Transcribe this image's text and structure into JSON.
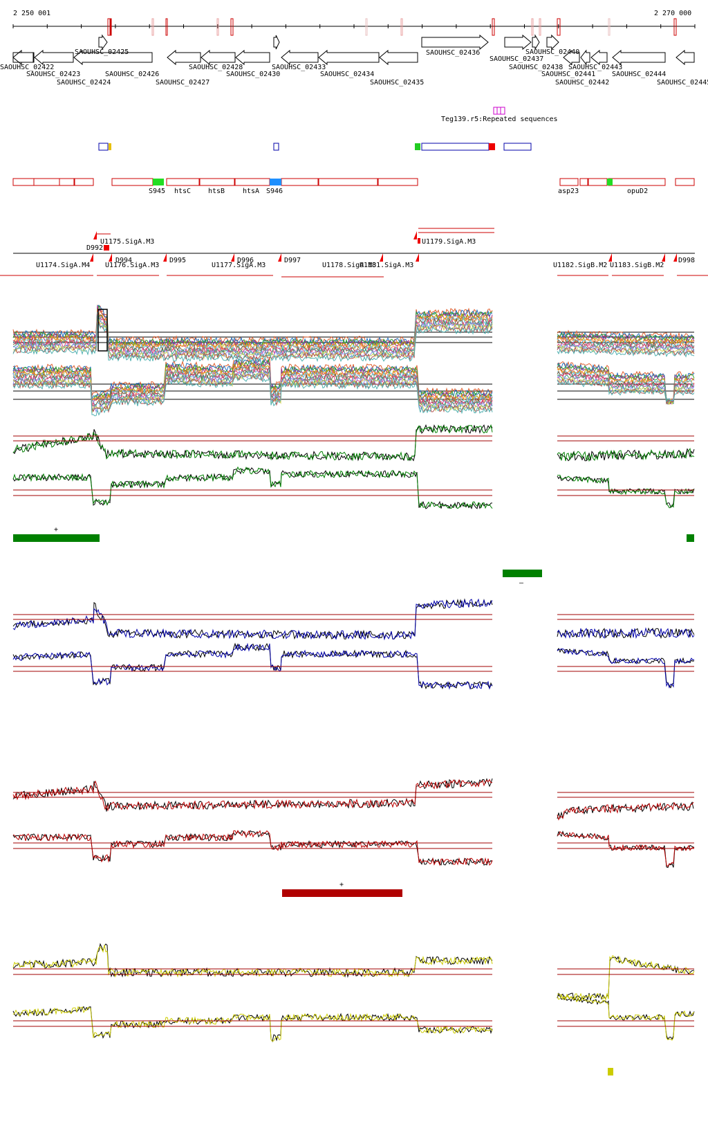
{
  "coordinates": {
    "start": "2 250 001",
    "end": "2 270 000"
  },
  "genes_top": [
    "SAOUHSC_02425",
    "SAOUHSC_02428",
    "SAOUHSC_02433",
    "SAOUHSC_02436",
    "SAOUHSC_02437",
    "SAOUHSC_02440",
    "SAOUHSC_02443"
  ],
  "genes_bottom": [
    "SAOUHSC_02422",
    "SAOUHSC_02423",
    "SAOUHSC_02424",
    "SAOUHSC_02426",
    "SAOUHSC_02427",
    "SAOUHSC_02430",
    "SAOUHSC_02434",
    "SAOUHSC_02435",
    "SAOUHSC_02438",
    "SAOUHSC_02441",
    "SAOUHSC_02442",
    "SAOUHSC_02444",
    "SAOUHSC_02445"
  ],
  "repeat_label": "Teg139.r5:Repeated sequences",
  "annotations": [
    "S945",
    "htsC",
    "htsB",
    "htsA",
    "S946",
    "asp23",
    "opuD2"
  ],
  "promoters": [
    "U1175.SigA.M3",
    "U1179.SigA.M3",
    "U1174.SigA.M4",
    "U1176.SigA.M3",
    "U1177.SigA.M3",
    "U1178.SigA.M3",
    "U1181.SigA.M3",
    "U1182.SigB.M2",
    "U1183.SigB.M2"
  ],
  "promoter_small": [
    "D992",
    "D994",
    "D995",
    "D996",
    "D997",
    "D998"
  ],
  "strand_marks": [
    "+",
    "–",
    "+"
  ],
  "colors": {
    "red": "#cc0000",
    "green": "#008000",
    "blue": "#0000aa",
    "darkred": "#aa0000",
    "yellow": "#cccc00"
  }
}
